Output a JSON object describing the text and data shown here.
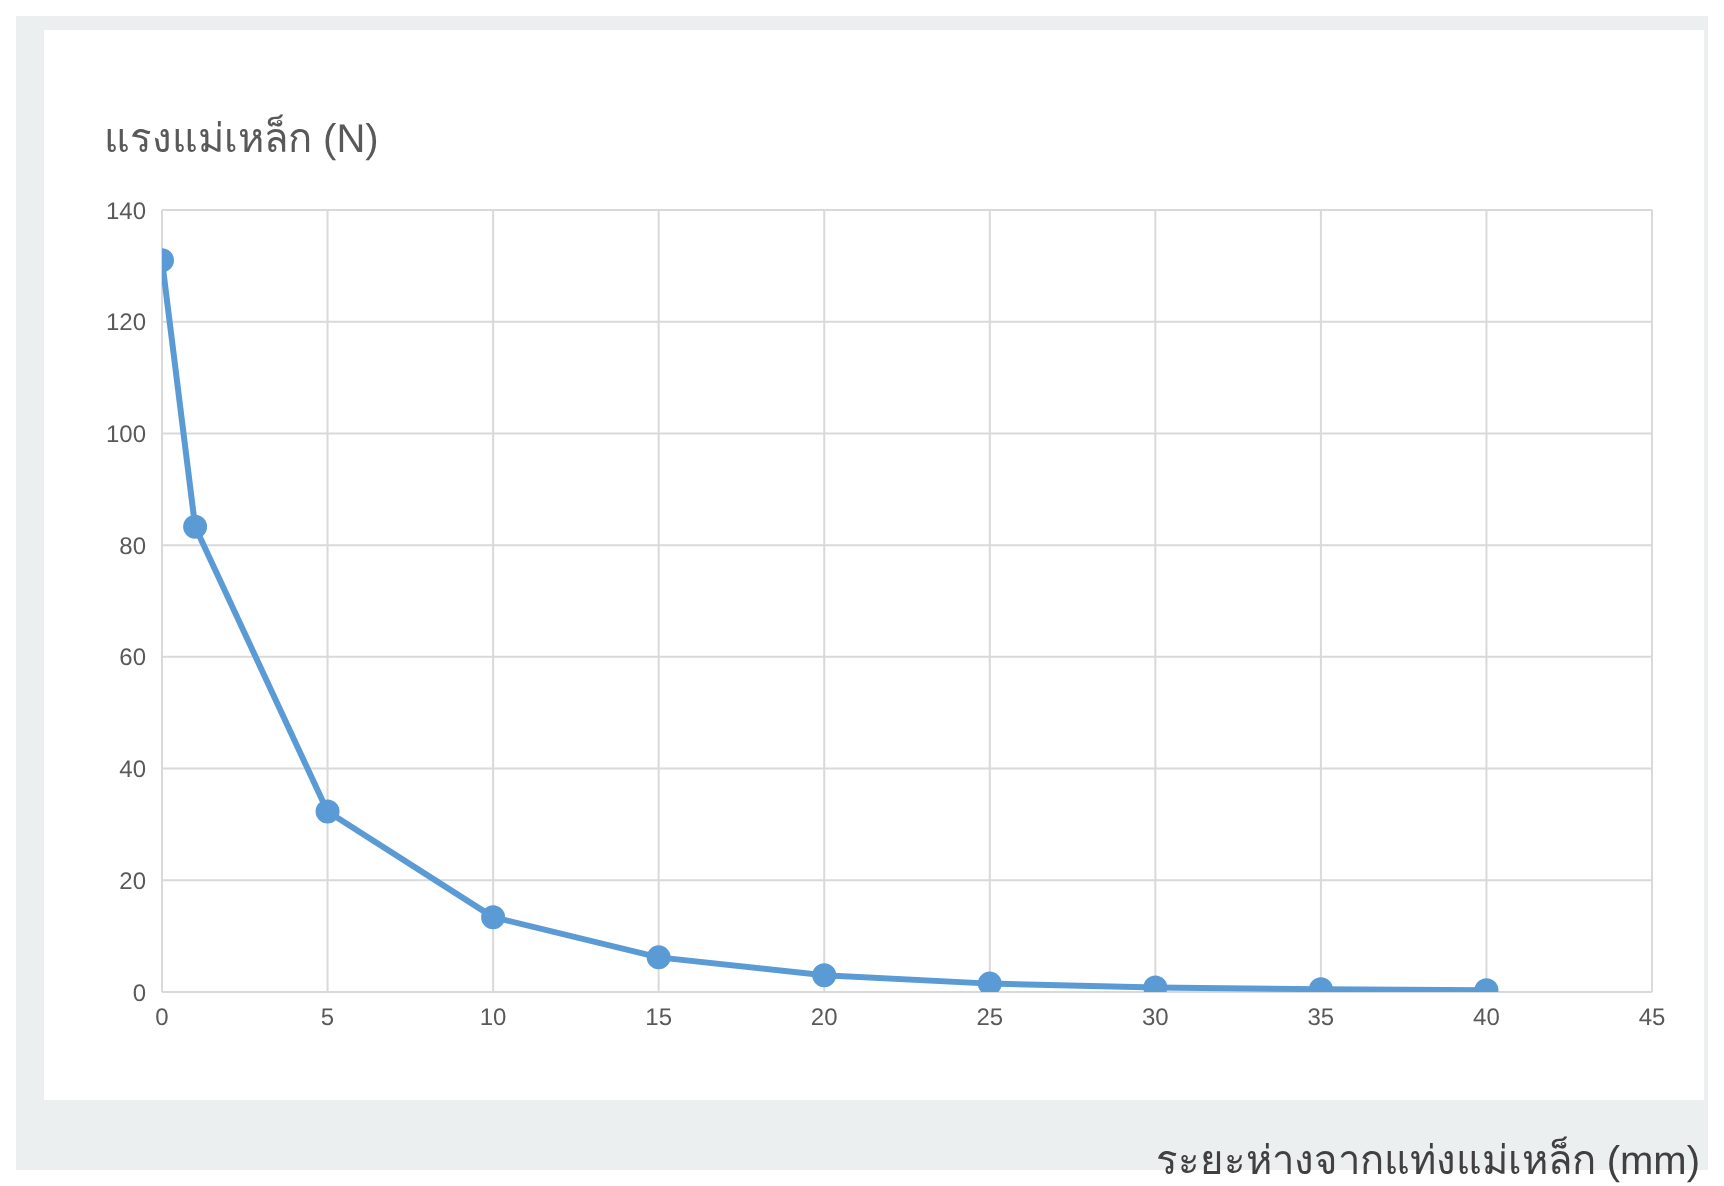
{
  "chart_data": {
    "type": "line",
    "title": "แรงแม่เหล็ก (N)",
    "xlabel": "ระยะห่างจากแท่งแม่เหล็ก (mm)",
    "x": [
      0,
      1,
      5,
      10,
      15,
      20,
      25,
      30,
      35,
      40
    ],
    "series": [
      {
        "color": "#5b9bd5",
        "values": [
          131,
          83.3,
          32.3,
          13.4,
          6.2,
          3,
          1.5,
          0.8,
          0.5,
          0.3
        ]
      }
    ],
    "xlim": [
      0,
      45
    ],
    "xticks": [
      0,
      5,
      10,
      15,
      20,
      25,
      30,
      35,
      40,
      45
    ],
    "ylim": [
      0,
      140
    ],
    "yticks": [
      0,
      20,
      40,
      60,
      80,
      100,
      120,
      140
    ],
    "grid": true,
    "marker": "circle",
    "line_style": "solid",
    "legend": false
  }
}
